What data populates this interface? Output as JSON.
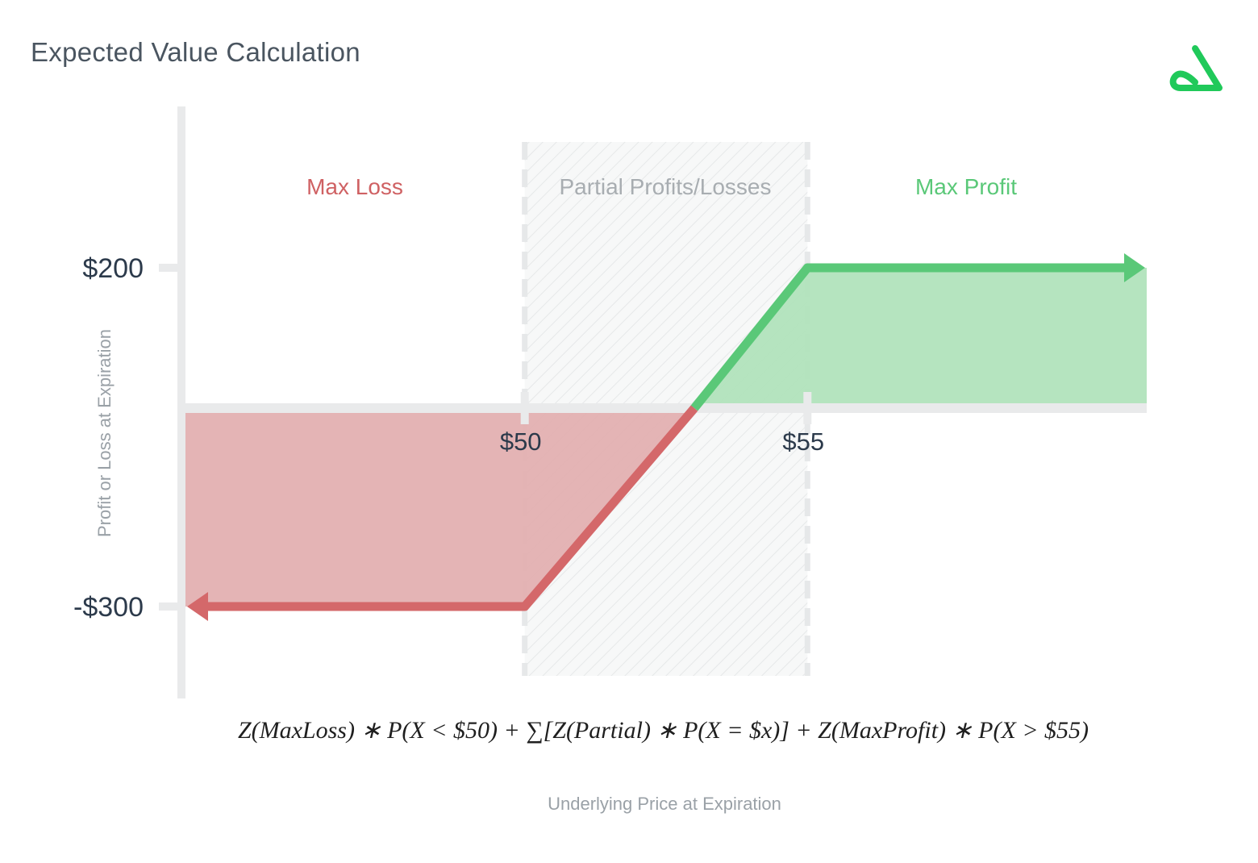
{
  "header": {
    "title": "Expected Value Calculation",
    "logo_icon": "brand-logo-icon",
    "logo_color": "#20c95a"
  },
  "formula": "Z(MaxLoss) ∗ P(X < $50) + ∑[Z(Partial) ∗ P(X = $x)] + Z(MaxProfit) ∗ P(X > $55)",
  "chart_data": {
    "type": "area",
    "title": "",
    "xlabel": "Underlying Price at Expiration",
    "ylabel": "Profit or Loss at Expiration",
    "x_ticks": [
      {
        "value": 50,
        "label": "$50"
      },
      {
        "value": 55,
        "label": "$55"
      }
    ],
    "y_ticks": [
      {
        "value": 200,
        "label": "$200"
      },
      {
        "value": -300,
        "label": "-$300"
      }
    ],
    "xlim": [
      44,
      61
    ],
    "ylim": [
      -400,
      400
    ],
    "breakeven": 53.0,
    "zones": [
      {
        "name": "Max Loss",
        "from": 44,
        "to": 50,
        "color": "#d4686a"
      },
      {
        "name": "Partial Profits/Losses",
        "from": 50,
        "to": 55,
        "color": "#a8adb1"
      },
      {
        "name": "Max Profit",
        "from": 55,
        "to": 61,
        "color": "#5ac878"
      }
    ],
    "series": [
      {
        "points": [
          {
            "x": 44,
            "y": -300
          },
          {
            "x": 50,
            "y": -300
          },
          {
            "x": 53.0,
            "y": 0
          }
        ],
        "color": "#d4686a",
        "fill": "#e3b0b1"
      },
      {
        "points": [
          {
            "x": 53.0,
            "y": 0
          },
          {
            "x": 55,
            "y": 200
          },
          {
            "x": 61,
            "y": 200
          }
        ],
        "color": "#5ac878",
        "fill": "#b1e3bc"
      }
    ],
    "grid": false,
    "legend": "none"
  }
}
